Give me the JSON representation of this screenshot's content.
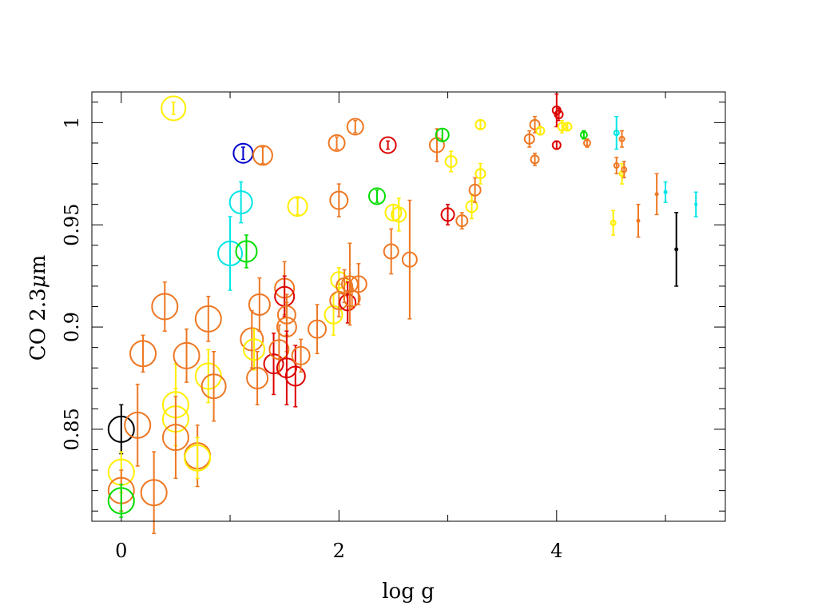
{
  "chart_data": {
    "type": "scatter",
    "title": "",
    "xlabel": "log g",
    "ylabel_prefix": "CO 2.3",
    "ylabel_mu": "μ",
    "ylabel_unit": "m",
    "xlim": [
      -0.27,
      5.55
    ],
    "ylim": [
      0.805,
      1.015
    ],
    "x_ticks": [
      0,
      2,
      4
    ],
    "x_tick_labels": [
      "0",
      "2",
      "4"
    ],
    "x_minor_step": 1,
    "y_ticks": [
      0.85,
      0.9,
      0.95,
      1.0
    ],
    "y_tick_labels": [
      "0.85",
      "0.9",
      "0.95",
      "1"
    ],
    "y_minor_step": 0.01,
    "colors": {
      "orange": "#ee7722",
      "yellow": "#ffee00",
      "red": "#dd0000",
      "green": "#00dd00",
      "cyan": "#00e5e5",
      "blue": "#0000cc",
      "black": "#000000"
    },
    "points": [
      {
        "x": 0.0,
        "y": 0.85,
        "err": 0.012,
        "color": "black",
        "size": 16
      },
      {
        "x": 0.0,
        "y": 0.829,
        "err": 0.01,
        "color": "yellow",
        "size": 16
      },
      {
        "x": 0.0,
        "y": 0.82,
        "err": 0.01,
        "color": "orange",
        "size": 16
      },
      {
        "x": 0.0,
        "y": 0.815,
        "err": 0.008,
        "color": "green",
        "size": 16
      },
      {
        "x": 0.15,
        "y": 0.852,
        "err": 0.02,
        "color": "orange",
        "size": 16
      },
      {
        "x": 0.2,
        "y": 0.887,
        "err": 0.009,
        "color": "orange",
        "size": 16
      },
      {
        "x": 0.3,
        "y": 0.819,
        "err": 0.02,
        "color": "orange",
        "size": 16
      },
      {
        "x": 0.4,
        "y": 0.91,
        "err": 0.012,
        "color": "orange",
        "size": 16
      },
      {
        "x": 0.48,
        "y": 1.007,
        "err": 0.003,
        "color": "yellow",
        "size": 15
      },
      {
        "x": 0.5,
        "y": 0.862,
        "err": 0.02,
        "color": "yellow",
        "size": 16
      },
      {
        "x": 0.5,
        "y": 0.855,
        "err": 0.015,
        "color": "yellow",
        "size": 16
      },
      {
        "x": 0.5,
        "y": 0.846,
        "err": 0.02,
        "color": "orange",
        "size": 16
      },
      {
        "x": 0.6,
        "y": 0.886,
        "err": 0.013,
        "color": "orange",
        "size": 16
      },
      {
        "x": 0.7,
        "y": 0.837,
        "err": 0.015,
        "color": "orange",
        "size": 16
      },
      {
        "x": 0.7,
        "y": 0.836,
        "err": 0.01,
        "color": "yellow",
        "size": 16
      },
      {
        "x": 0.8,
        "y": 0.904,
        "err": 0.011,
        "color": "orange",
        "size": 16
      },
      {
        "x": 0.8,
        "y": 0.876,
        "err": 0.013,
        "color": "yellow",
        "size": 16
      },
      {
        "x": 0.85,
        "y": 0.871,
        "err": 0.017,
        "color": "orange",
        "size": 15
      },
      {
        "x": 1.0,
        "y": 0.936,
        "err": 0.018,
        "color": "cyan",
        "size": 15
      },
      {
        "x": 1.1,
        "y": 0.961,
        "err": 0.01,
        "color": "cyan",
        "size": 14
      },
      {
        "x": 1.12,
        "y": 0.985,
        "err": 0.003,
        "color": "blue",
        "size": 12
      },
      {
        "x": 1.15,
        "y": 0.937,
        "err": 0.008,
        "color": "green",
        "size": 13
      },
      {
        "x": 1.2,
        "y": 0.894,
        "err": 0.014,
        "color": "orange",
        "size": 14
      },
      {
        "x": 1.22,
        "y": 0.889,
        "err": 0.01,
        "color": "yellow",
        "size": 13
      },
      {
        "x": 1.25,
        "y": 0.875,
        "err": 0.013,
        "color": "orange",
        "size": 13
      },
      {
        "x": 1.27,
        "y": 0.911,
        "err": 0.013,
        "color": "orange",
        "size": 13
      },
      {
        "x": 1.3,
        "y": 0.984,
        "err": 0.004,
        "color": "orange",
        "size": 12
      },
      {
        "x": 1.4,
        "y": 0.882,
        "err": 0.015,
        "color": "red",
        "size": 12
      },
      {
        "x": 1.45,
        "y": 0.889,
        "err": 0.012,
        "color": "orange",
        "size": 12
      },
      {
        "x": 1.5,
        "y": 0.919,
        "err": 0.013,
        "color": "orange",
        "size": 12
      },
      {
        "x": 1.5,
        "y": 0.915,
        "err": 0.01,
        "color": "red",
        "size": 12
      },
      {
        "x": 1.52,
        "y": 0.9,
        "err": 0.012,
        "color": "orange",
        "size": 12
      },
      {
        "x": 1.52,
        "y": 0.906,
        "err": 0.01,
        "color": "orange",
        "size": 11
      },
      {
        "x": 1.52,
        "y": 0.88,
        "err": 0.018,
        "color": "red",
        "size": 12
      },
      {
        "x": 1.6,
        "y": 0.876,
        "err": 0.015,
        "color": "red",
        "size": 12
      },
      {
        "x": 1.62,
        "y": 0.959,
        "err": 0.004,
        "color": "yellow",
        "size": 12
      },
      {
        "x": 1.65,
        "y": 0.886,
        "err": 0.008,
        "color": "orange",
        "size": 11
      },
      {
        "x": 1.8,
        "y": 0.899,
        "err": 0.012,
        "color": "orange",
        "size": 11
      },
      {
        "x": 1.95,
        "y": 0.906,
        "err": 0.01,
        "color": "yellow",
        "size": 11
      },
      {
        "x": 2.0,
        "y": 0.913,
        "err": 0.008,
        "color": "orange",
        "size": 11
      },
      {
        "x": 2.0,
        "y": 0.923,
        "err": 0.006,
        "color": "yellow",
        "size": 10
      },
      {
        "x": 2.0,
        "y": 0.962,
        "err": 0.008,
        "color": "orange",
        "size": 11
      },
      {
        "x": 1.98,
        "y": 0.99,
        "err": 0.003,
        "color": "orange",
        "size": 10
      },
      {
        "x": 2.05,
        "y": 0.92,
        "err": 0.008,
        "color": "orange",
        "size": 10
      },
      {
        "x": 2.08,
        "y": 0.912,
        "err": 0.01,
        "color": "red",
        "size": 10
      },
      {
        "x": 2.1,
        "y": 0.921,
        "err": 0.02,
        "color": "orange",
        "size": 10
      },
      {
        "x": 2.12,
        "y": 0.914,
        "err": 0.005,
        "color": "orange",
        "size": 10
      },
      {
        "x": 2.15,
        "y": 0.998,
        "err": 0.003,
        "color": "orange",
        "size": 10
      },
      {
        "x": 2.18,
        "y": 0.921,
        "err": 0.01,
        "color": "orange",
        "size": 10
      },
      {
        "x": 2.35,
        "y": 0.964,
        "err": 0.003,
        "color": "green",
        "size": 10
      },
      {
        "x": 2.45,
        "y": 0.989,
        "err": 0.002,
        "color": "red",
        "size": 10
      },
      {
        "x": 2.48,
        "y": 0.937,
        "err": 0.011,
        "color": "orange",
        "size": 9
      },
      {
        "x": 2.5,
        "y": 0.956,
        "err": 0.004,
        "color": "yellow",
        "size": 10
      },
      {
        "x": 2.55,
        "y": 0.955,
        "err": 0.008,
        "color": "yellow",
        "size": 9
      },
      {
        "x": 2.65,
        "y": 0.933,
        "err": 0.029,
        "color": "orange",
        "size": 9
      },
      {
        "x": 2.9,
        "y": 0.989,
        "err": 0.008,
        "color": "orange",
        "size": 9
      },
      {
        "x": 2.95,
        "y": 0.994,
        "err": 0.003,
        "color": "green",
        "size": 8
      },
      {
        "x": 3.0,
        "y": 0.955,
        "err": 0.005,
        "color": "red",
        "size": 8
      },
      {
        "x": 3.03,
        "y": 0.981,
        "err": 0.005,
        "color": "yellow",
        "size": 7
      },
      {
        "x": 3.13,
        "y": 0.952,
        "err": 0.004,
        "color": "orange",
        "size": 7
      },
      {
        "x": 3.22,
        "y": 0.959,
        "err": 0.006,
        "color": "yellow",
        "size": 7
      },
      {
        "x": 3.25,
        "y": 0.967,
        "err": 0.006,
        "color": "orange",
        "size": 7
      },
      {
        "x": 3.3,
        "y": 0.975,
        "err": 0.005,
        "color": "yellow",
        "size": 6
      },
      {
        "x": 3.3,
        "y": 0.999,
        "err": 0.002,
        "color": "yellow",
        "size": 6
      },
      {
        "x": 3.75,
        "y": 0.992,
        "err": 0.004,
        "color": "orange",
        "size": 6
      },
      {
        "x": 3.8,
        "y": 0.999,
        "err": 0.004,
        "color": "orange",
        "size": 6
      },
      {
        "x": 3.8,
        "y": 0.982,
        "err": 0.003,
        "color": "orange",
        "size": 5
      },
      {
        "x": 3.85,
        "y": 0.996,
        "err": 0.002,
        "color": "yellow",
        "size": 5
      },
      {
        "x": 4.0,
        "y": 1.006,
        "err": 0.008,
        "color": "red",
        "size": 5
      },
      {
        "x": 4.02,
        "y": 1.004,
        "err": 0.003,
        "color": "red",
        "size": 5
      },
      {
        "x": 4.0,
        "y": 0.989,
        "err": 0.002,
        "color": "red",
        "size": 5
      },
      {
        "x": 4.05,
        "y": 0.998,
        "err": 0.003,
        "color": "yellow",
        "size": 5
      },
      {
        "x": 4.1,
        "y": 0.998,
        "err": 0.002,
        "color": "yellow",
        "size": 5
      },
      {
        "x": 4.25,
        "y": 0.994,
        "err": 0.002,
        "color": "green",
        "size": 4
      },
      {
        "x": 4.28,
        "y": 0.99,
        "err": 0.002,
        "color": "orange",
        "size": 4
      },
      {
        "x": 4.52,
        "y": 0.951,
        "err": 0.006,
        "color": "yellow",
        "size": 3
      },
      {
        "x": 4.55,
        "y": 0.995,
        "err": 0.008,
        "color": "cyan",
        "size": 3
      },
      {
        "x": 4.55,
        "y": 0.979,
        "err": 0.004,
        "color": "orange",
        "size": 3
      },
      {
        "x": 4.6,
        "y": 0.992,
        "err": 0.004,
        "color": "orange",
        "size": 3
      },
      {
        "x": 4.6,
        "y": 0.975,
        "err": 0.005,
        "color": "yellow",
        "size": 3
      },
      {
        "x": 4.62,
        "y": 0.977,
        "err": 0.004,
        "color": "orange",
        "size": 3
      },
      {
        "x": 4.75,
        "y": 0.952,
        "err": 0.008,
        "color": "orange",
        "size": 2
      },
      {
        "x": 4.92,
        "y": 0.965,
        "err": 0.01,
        "color": "orange",
        "size": 2
      },
      {
        "x": 5.0,
        "y": 0.966,
        "err": 0.005,
        "color": "cyan",
        "size": 2
      },
      {
        "x": 5.1,
        "y": 0.938,
        "err": 0.018,
        "color": "black",
        "size": 2
      },
      {
        "x": 5.28,
        "y": 0.96,
        "err": 0.006,
        "color": "cyan",
        "size": 1.5
      }
    ]
  }
}
